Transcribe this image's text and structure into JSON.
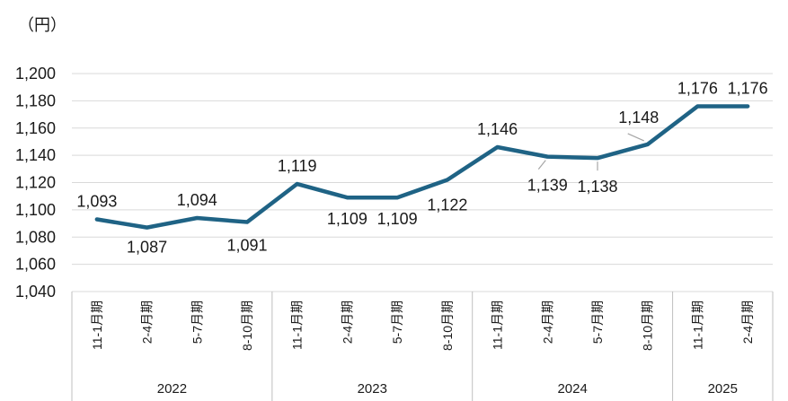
{
  "chart_data": {
    "type": "line",
    "unit_label": "（円）",
    "categories": [
      "11-1月期",
      "2-4月期",
      "5-7月期",
      "8-10月期",
      "11-1月期",
      "2-4月期",
      "5-7月期",
      "8-10月期",
      "11-1月期",
      "2-4月期",
      "5-7月期",
      "8-10月期",
      "11-1月期",
      "2-4月期"
    ],
    "years": [
      {
        "label": "2022",
        "start": 0,
        "end": 3
      },
      {
        "label": "2023",
        "start": 4,
        "end": 7
      },
      {
        "label": "2024",
        "start": 8,
        "end": 11
      },
      {
        "label": "2025",
        "start": 12,
        "end": 13
      }
    ],
    "series": [
      {
        "values": [
          1093,
          1087,
          1094,
          1091,
          1119,
          1109,
          1109,
          1122,
          1146,
          1139,
          1138,
          1148,
          1176,
          1176
        ],
        "labels": [
          "1,093",
          "1,087",
          "1,094",
          "1,091",
          "1,119",
          "1,109",
          "1,109",
          "1,122",
          "1,146",
          "1,139",
          "1,138",
          "1,148",
          "1,176",
          "1,176"
        ],
        "color": "#1f6385"
      }
    ],
    "ylim": [
      1040,
      1200
    ],
    "yticks": [
      1040,
      1060,
      1080,
      1100,
      1120,
      1140,
      1160,
      1180,
      1200
    ],
    "ytick_labels": [
      "1,040",
      "1,060",
      "1,080",
      "1,100",
      "1,120",
      "1,140",
      "1,160",
      "1,180",
      "1,200"
    ],
    "grid": true,
    "xlabel": "",
    "ylabel": ""
  }
}
